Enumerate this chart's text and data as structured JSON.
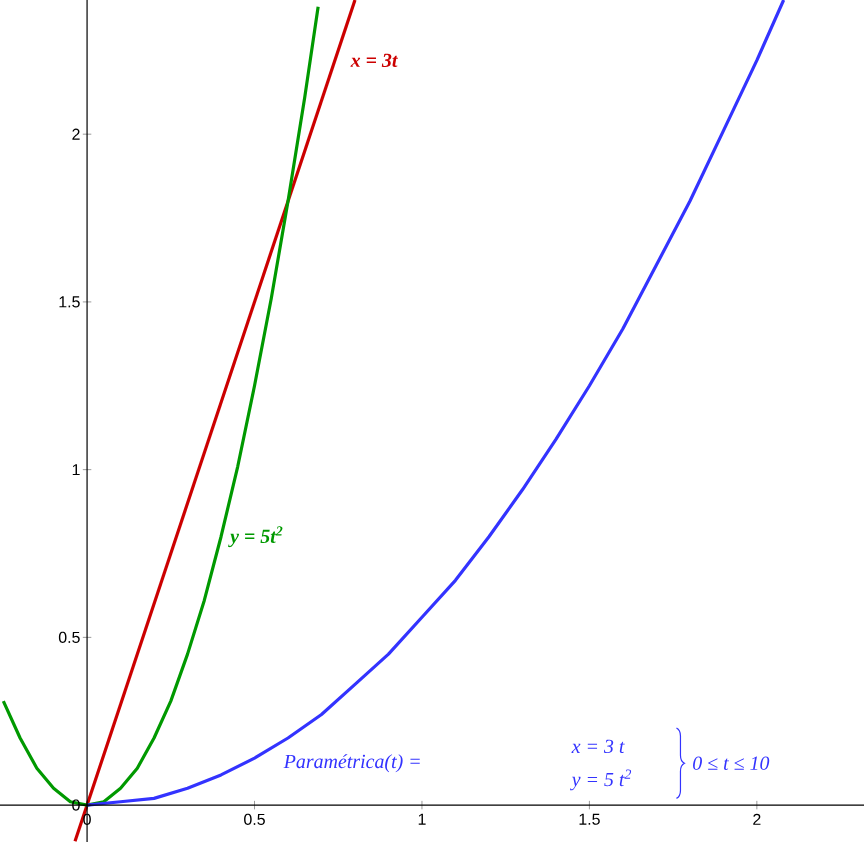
{
  "chart_data": {
    "type": "line",
    "series": [
      {
        "color": "#cc0000",
        "x": [
          -0.036,
          0.8
        ],
        "values": [
          -0.108,
          2.4
        ]
      },
      {
        "color": "#009900",
        "x": [
          -0.25,
          -0.2,
          -0.15,
          -0.1,
          -0.05,
          0,
          0.05,
          0.1,
          0.15,
          0.2,
          0.25,
          0.3,
          0.35,
          0.4,
          0.45,
          0.5,
          0.55,
          0.6,
          0.65,
          0.69
        ],
        "values": [
          0.31,
          0.2,
          0.11,
          0.05,
          0.01,
          0,
          0.01,
          0.05,
          0.11,
          0.2,
          0.31,
          0.45,
          0.61,
          0.8,
          1.01,
          1.25,
          1.51,
          1.8,
          2.11,
          2.38
        ]
      },
      {
        "color": "#3333ff",
        "x": [
          0,
          0.1,
          0.2,
          0.3,
          0.4,
          0.5,
          0.6,
          0.7,
          0.8,
          0.9,
          1.0,
          1.1,
          1.2,
          1.3,
          1.4,
          1.5,
          1.6,
          1.7,
          1.8,
          1.9,
          2.0,
          2.08
        ],
        "values": [
          0,
          0.01,
          0.02,
          0.05,
          0.09,
          0.14,
          0.2,
          0.27,
          0.36,
          0.45,
          0.56,
          0.67,
          0.8,
          0.94,
          1.09,
          1.25,
          1.42,
          1.61,
          1.8,
          2.01,
          2.22,
          2.4
        ]
      }
    ],
    "annotations": [
      "x = 3t",
      "y = 5t$^{2}$",
      "Paramétrica(t)  =",
      "x = 3 t",
      "y = 5 t$^{2}$",
      "0 ≤ t ≤ 10"
    ],
    "xlim": [
      -0.26,
      2.32
    ],
    "ylim": [
      -0.11,
      2.4
    ],
    "xticks": [
      0,
      0.5,
      1,
      1.5,
      2
    ],
    "yticks": [
      0,
      0.5,
      1,
      1.5,
      2
    ],
    "marker": "none",
    "line_style": "solid",
    "grid": false
  }
}
